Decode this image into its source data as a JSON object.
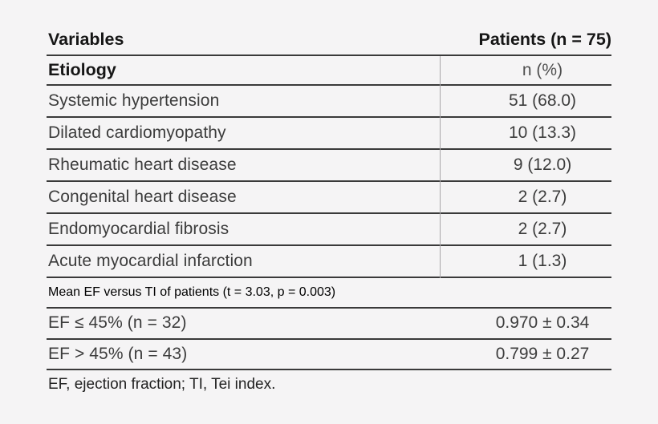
{
  "table": {
    "header": {
      "col1": "Variables",
      "col2": "Patients (n = 75)"
    },
    "etiology_section": {
      "title": "Etiology",
      "unit_label": "n (%)",
      "rows": [
        {
          "label": "Systemic hypertension",
          "value": "51 (68.0)"
        },
        {
          "label": "Dilated cardiomyopathy",
          "value": "10 (13.3)"
        },
        {
          "label": "Rheumatic heart disease",
          "value": "9 (12.0)"
        },
        {
          "label": "Congenital heart disease",
          "value": "2 (2.7)"
        },
        {
          "label": "Endomyocardial fibrosis",
          "value": "2 (2.7)"
        },
        {
          "label": "Acute myocardial infarction",
          "value": "1 (1.3)"
        }
      ]
    },
    "ef_section": {
      "title": "Mean EF versus TI of patients (t = 3.03, p = 0.003)",
      "rows": [
        {
          "label": "EF ≤ 45% (n = 32)",
          "value": "0.970 ± 0.34"
        },
        {
          "label": "EF > 45% (n = 43)",
          "value": "0.799 ± 0.27"
        }
      ]
    },
    "footnote": "EF, ejection fraction; TI, Tei index."
  },
  "colors": {
    "background": "#f5f4f5",
    "rule": "#3a3a3a",
    "bold_text": "#161616",
    "body_text": "#3c3c3c",
    "column_divider": "#a9a6a9"
  },
  "chart_data": {
    "type": "table",
    "title": "Patient characteristics table",
    "columns": [
      "Variables",
      "Patients (n = 75)"
    ],
    "sections": [
      {
        "header": [
          "Etiology",
          "n (%)"
        ],
        "rows": [
          [
            "Systemic hypertension",
            "51 (68.0)"
          ],
          [
            "Dilated cardiomyopathy",
            "10 (13.3)"
          ],
          [
            "Rheumatic heart disease",
            "9 (12.0)"
          ],
          [
            "Congenital heart disease",
            "2 (2.7)"
          ],
          [
            "Endomyocardial fibrosis",
            "2 (2.7)"
          ],
          [
            "Acute myocardial infarction",
            "1 (1.3)"
          ]
        ]
      },
      {
        "header": [
          "Mean EF versus TI of patients (t = 3.03, p = 0.003)",
          ""
        ],
        "rows": [
          [
            "EF ≤ 45% (n = 32)",
            "0.970 ± 0.34"
          ],
          [
            "EF > 45% (n = 43)",
            "0.799 ± 0.27"
          ]
        ]
      }
    ],
    "footnote": "EF, ejection fraction; TI, Tei index."
  }
}
